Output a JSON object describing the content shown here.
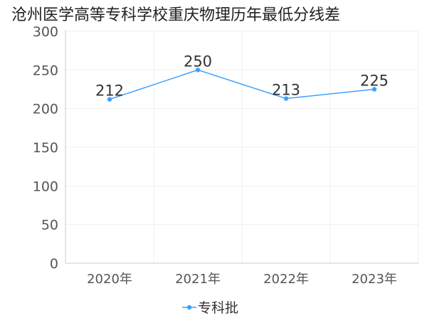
{
  "chart_data": {
    "type": "line",
    "title": "沧州医学高等专科学校重庆物理历年最低分线差",
    "categories": [
      "2020年",
      "2021年",
      "2022年",
      "2023年"
    ],
    "series": [
      {
        "name": "专科批",
        "values": [
          212,
          250,
          213,
          225
        ],
        "color": "#3fa0ff"
      }
    ],
    "yticks": [
      0,
      50,
      100,
      150,
      200,
      250,
      300
    ],
    "ylim": [
      0,
      300
    ],
    "xlabel": "",
    "ylabel": "",
    "grid": true,
    "legend_position": "bottom"
  },
  "colors": {
    "title": "#222222",
    "tick_label": "#555555",
    "data_label": "#333333",
    "grid": "#f0f0f0",
    "axis": "#cccccc"
  }
}
